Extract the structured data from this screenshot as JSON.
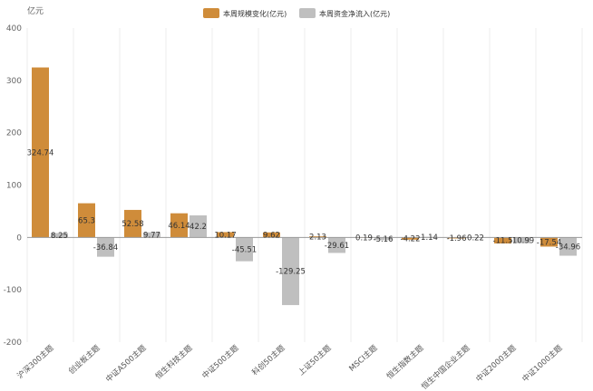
{
  "chart_data": {
    "type": "bar",
    "y_unit": "亿元",
    "ylim": [
      -200,
      400
    ],
    "yticks": [
      -200,
      -100,
      0,
      100,
      200,
      300,
      400
    ],
    "grid": {
      "vertical": true,
      "horizontal": false
    },
    "legend_position": "top-center",
    "categories": [
      "沪深300主题",
      "创业板主题",
      "中证A500主题",
      "恒生科技主题",
      "中证500主题",
      "科创50主题",
      "上证50主题",
      "MSCI主题",
      "恒生指数主题",
      "恒生中国企业主题",
      "中证2000主题",
      "中证1000主题"
    ],
    "series": [
      {
        "name": "本周规模变化(亿元)",
        "color": "#cf8c3a",
        "values": [
          324.74,
          65.3,
          52.58,
          46.14,
          10.17,
          9.62,
          2.13,
          0.19,
          -4.22,
          -1.96,
          -11.5,
          -17.54
        ]
      },
      {
        "name": "本周资金净流入(亿元)",
        "color": "#bfbfbf",
        "values": [
          8.25,
          -36.84,
          9.77,
          42.2,
          -45.51,
          -129.25,
          -29.61,
          -5.16,
          1.14,
          0.22,
          -10.99,
          -34.96
        ]
      }
    ]
  }
}
